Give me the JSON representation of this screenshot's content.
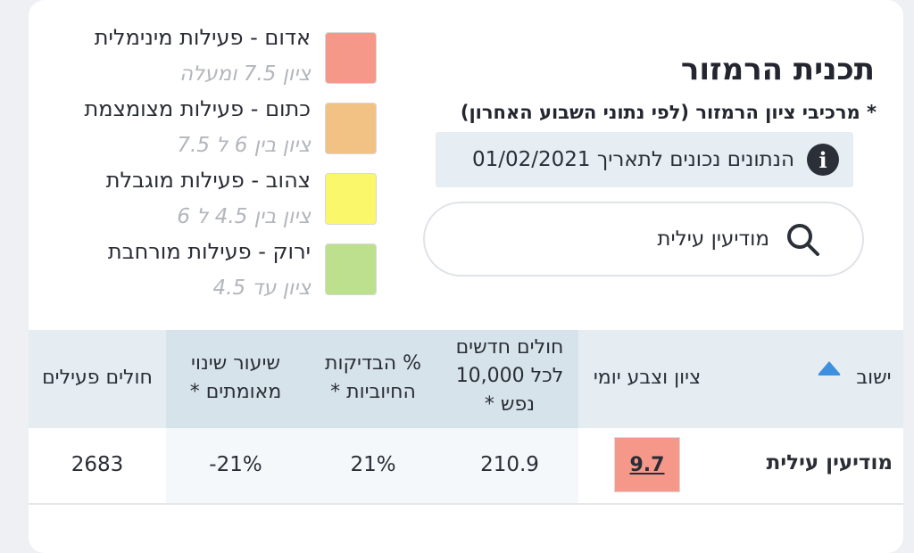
{
  "header": {
    "title": "תכנית הרמזור",
    "subtitle": "* מרכיבי ציון הרמזור (לפי נתוני השבוע האחרון)",
    "info_text": "הנתונים נכונים לתאריך 01/02/2021",
    "info_icon": "i"
  },
  "search": {
    "value": "מודיעין עילית",
    "icon": "search-icon"
  },
  "legend": [
    {
      "title": "אדום - פעילות מינימלית",
      "sub": "ציון 7.5 ומעלה",
      "color": "#f5988a"
    },
    {
      "title": "כתום - פעילות מצומצמת",
      "sub": "ציון בין 6 ל 7.5",
      "color": "#f1c283"
    },
    {
      "title": "צהוב - פעילות מוגבלת",
      "sub": "ציון בין 4.5 ל 6",
      "color": "#fbf76a"
    },
    {
      "title": "ירוק - פעילות מורחבת",
      "sub": "ציון עד 4.5",
      "color": "#bde08f"
    }
  ],
  "table": {
    "headers": {
      "city": "ישוב",
      "score": "ציון וצבע יומי",
      "new_cases_l1": "חולים חדשים",
      "new_cases_l2": "לכל 10,000",
      "new_cases_l3": "נפש *",
      "positive_l1": "% הבדיקות",
      "positive_l2": "החיוביות *",
      "change_l1": "שיעור שינוי",
      "change_l2": "מאומתים *",
      "active": "חולים פעילים"
    },
    "rows": [
      {
        "city": "מודיעין עילית",
        "score": "9.7",
        "new_cases": "210.9",
        "positive": "21%",
        "change": "-21%",
        "active": "2683"
      }
    ]
  }
}
